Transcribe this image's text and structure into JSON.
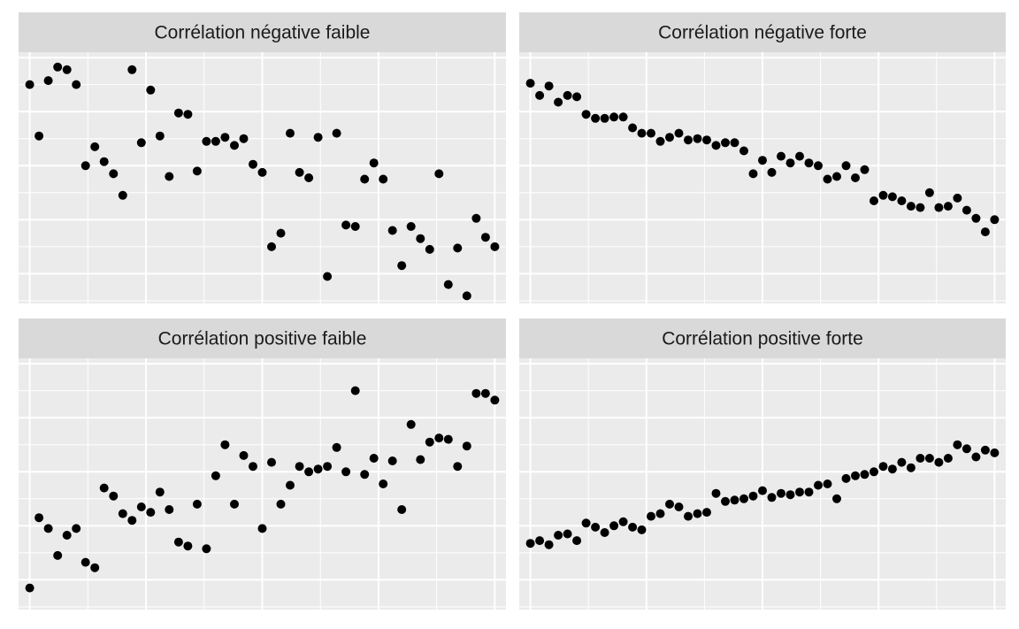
{
  "chart_data": [
    {
      "type": "scatter",
      "title": "Corrélation négative faible",
      "grid": true,
      "x": [
        1,
        2,
        3,
        4,
        5,
        6,
        7,
        8,
        9,
        10,
        11,
        12,
        13,
        14,
        15,
        16,
        17,
        18,
        19,
        20,
        21,
        22,
        23,
        24,
        25,
        26,
        27,
        28,
        29,
        30,
        31,
        32,
        33,
        34,
        35,
        36,
        37,
        38,
        39,
        40,
        41,
        42,
        43,
        44,
        45,
        46,
        47,
        48,
        49,
        50,
        51
      ],
      "y": [
        8.0,
        6.1,
        8.15,
        8.65,
        8.55,
        8.0,
        5.0,
        5.7,
        5.15,
        4.7,
        3.9,
        8.55,
        5.85,
        7.8,
        6.1,
        4.6,
        6.95,
        6.9,
        4.8,
        5.9,
        5.9,
        6.05,
        5.75,
        6.0,
        5.05,
        4.75,
        2.0,
        2.5,
        6.2,
        4.75,
        4.55,
        6.05,
        0.9,
        6.2,
        2.8,
        2.75,
        4.5,
        5.1,
        4.5,
        2.6,
        1.3,
        2.75,
        2.3,
        1.9,
        4.7,
        0.6,
        1.95,
        0.18,
        3.05,
        2.35,
        2.0
      ],
      "xlim": [
        -0.2,
        52.2
      ],
      "ylim": [
        -0.1,
        9.2
      ]
    },
    {
      "type": "scatter",
      "title": "Corrélation négative forte",
      "grid": true,
      "x": [
        1,
        2,
        3,
        4,
        5,
        6,
        7,
        8,
        9,
        10,
        11,
        12,
        13,
        14,
        15,
        16,
        17,
        18,
        19,
        20,
        21,
        22,
        23,
        24,
        25,
        26,
        27,
        28,
        29,
        30,
        31,
        32,
        33,
        34,
        35,
        36,
        37,
        38,
        39,
        40,
        41,
        42,
        43,
        44,
        45,
        46,
        47,
        48,
        49,
        50,
        51
      ],
      "y": [
        8.05,
        7.6,
        7.95,
        7.35,
        7.6,
        7.55,
        6.9,
        6.75,
        6.75,
        6.8,
        6.8,
        6.4,
        6.2,
        6.2,
        5.9,
        6.05,
        6.2,
        5.95,
        6.0,
        5.95,
        5.75,
        5.85,
        5.85,
        5.55,
        4.7,
        5.2,
        4.75,
        5.35,
        5.1,
        5.35,
        5.1,
        5.0,
        4.5,
        4.6,
        5.0,
        4.55,
        4.85,
        3.7,
        3.9,
        3.85,
        3.7,
        3.5,
        3.45,
        4.0,
        3.45,
        3.5,
        3.8,
        3.35,
        3.05,
        2.55,
        3.0
      ],
      "xlim": [
        -0.2,
        52.2
      ],
      "ylim": [
        -0.1,
        9.2
      ]
    },
    {
      "type": "scatter",
      "title": "Corrélation positive faible",
      "grid": true,
      "x": [
        1,
        2,
        3,
        4,
        5,
        6,
        7,
        8,
        9,
        10,
        11,
        12,
        13,
        14,
        15,
        16,
        17,
        18,
        19,
        20,
        21,
        22,
        23,
        24,
        25,
        26,
        27,
        28,
        29,
        30,
        31,
        32,
        33,
        34,
        35,
        36,
        37,
        38,
        39,
        40,
        41,
        42,
        43,
        44,
        45,
        46,
        47,
        48,
        49,
        50,
        51
      ],
      "y": [
        0.7,
        3.3,
        2.9,
        1.9,
        2.65,
        2.9,
        1.65,
        1.45,
        4.4,
        4.1,
        3.45,
        3.2,
        3.7,
        3.5,
        4.25,
        3.6,
        2.4,
        2.25,
        3.8,
        2.15,
        4.85,
        6.0,
        3.8,
        5.6,
        5.2,
        2.9,
        5.35,
        3.8,
        4.5,
        5.2,
        5.0,
        5.1,
        5.2,
        5.9,
        5.0,
        8.0,
        4.9,
        5.5,
        4.55,
        5.4,
        3.6,
        6.75,
        5.45,
        6.1,
        6.25,
        6.2,
        5.2,
        5.95,
        7.9,
        7.9,
        7.65
      ],
      "xlim": [
        -0.2,
        52.2
      ],
      "ylim": [
        -0.1,
        9.2
      ]
    },
    {
      "type": "scatter",
      "title": "Corrélation positive forte",
      "grid": true,
      "x": [
        1,
        2,
        3,
        4,
        5,
        6,
        7,
        8,
        9,
        10,
        11,
        12,
        13,
        14,
        15,
        16,
        17,
        18,
        19,
        20,
        21,
        22,
        23,
        24,
        25,
        26,
        27,
        28,
        29,
        30,
        31,
        32,
        33,
        34,
        35,
        36,
        37,
        38,
        39,
        40,
        41,
        42,
        43,
        44,
        45,
        46,
        47,
        48,
        49,
        50,
        51
      ],
      "y": [
        2.35,
        2.45,
        2.3,
        2.65,
        2.7,
        2.45,
        3.1,
        2.95,
        2.75,
        3.0,
        3.15,
        2.95,
        2.85,
        3.35,
        3.45,
        3.8,
        3.7,
        3.35,
        3.45,
        3.5,
        4.2,
        3.9,
        3.95,
        4.0,
        4.1,
        4.3,
        4.05,
        4.2,
        4.15,
        4.25,
        4.25,
        4.5,
        4.55,
        4.0,
        4.75,
        4.85,
        4.9,
        5.0,
        5.2,
        5.1,
        5.35,
        5.15,
        5.5,
        5.5,
        5.35,
        5.5,
        6.0,
        5.85,
        5.55,
        5.8,
        5.7
      ],
      "xlim": [
        -0.2,
        52.2
      ],
      "ylim": [
        -0.1,
        9.2
      ]
    }
  ],
  "colors": {
    "panel_background": "#ebebeb",
    "strip_background": "#d9d9d9",
    "grid_line": "#ffffff",
    "point": "#000000"
  }
}
